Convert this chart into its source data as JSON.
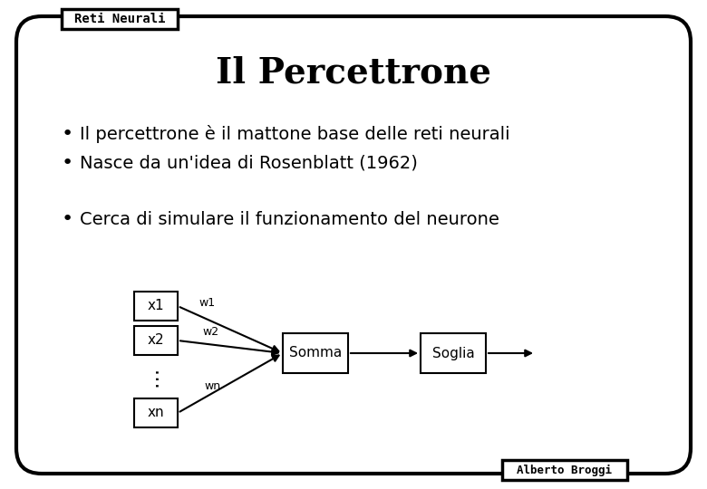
{
  "title": "Il Percettrone",
  "header_label": "Reti Neurali",
  "footer_label": "Alberto Broggi",
  "bullets_group1": [
    "Il percettrone è il mattone base delle reti neurali",
    "Nasce da un'idea di Rosenblatt (1962)"
  ],
  "bullet_group2": "Cerca di simulare il funzionamento del neurone",
  "input_labels": [
    "x1",
    "x2",
    "xn"
  ],
  "weight_labels": [
    "w1",
    "w2",
    "wn"
  ],
  "box_somma": "Somma",
  "box_soglia": "Soglia",
  "bg_color": "#ffffff",
  "border_color": "#000000",
  "text_color": "#000000",
  "title_fontsize": 28,
  "bullet_fontsize": 14,
  "diagram_fontsize": 11,
  "header_fontsize": 10,
  "footer_fontsize": 9
}
